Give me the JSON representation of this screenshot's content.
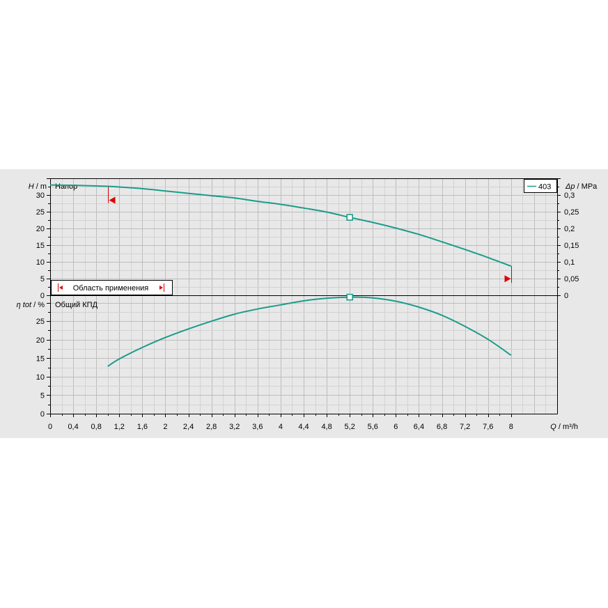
{
  "chart_data": [
    {
      "type": "line",
      "panel": "head",
      "title": "Напор",
      "ylabel_symbol": "H",
      "ylabel_unit": "m",
      "y2label_symbol": "Δp",
      "y2label_unit": "MPa",
      "xlim": [
        0,
        8.8
      ],
      "ylim": [
        0,
        35
      ],
      "y2lim": [
        0,
        0.35
      ],
      "yticks": [
        "0",
        "5",
        "10",
        "15",
        "20",
        "25",
        "30"
      ],
      "y2ticks": [
        "0",
        "0,05",
        "0,1",
        "0,15",
        "0,2",
        "0,25",
        "0,3"
      ],
      "legend": {
        "label": "403",
        "placement": "top-right"
      },
      "series": [
        {
          "name": "403",
          "x": [
            0,
            0.4,
            0.8,
            1.0,
            1.2,
            1.6,
            2.0,
            2.4,
            2.8,
            3.2,
            3.6,
            4.0,
            4.4,
            4.8,
            5.2,
            5.6,
            6.0,
            6.4,
            6.8,
            7.2,
            7.6,
            8.0
          ],
          "y": [
            33.0,
            32.9,
            32.7,
            32.6,
            32.4,
            31.9,
            31.2,
            30.5,
            29.8,
            29.1,
            28.1,
            27.2,
            26.1,
            24.9,
            23.3,
            21.8,
            20.1,
            18.2,
            16.0,
            13.7,
            11.3,
            8.7
          ]
        }
      ],
      "markers": [
        {
          "x": 5.2,
          "y": 23.3
        }
      ],
      "operating_range": {
        "label": "Область применения",
        "qmin": 1.0,
        "qmax": 8.0
      }
    },
    {
      "type": "line",
      "panel": "efficiency",
      "title": "Общий КПД",
      "ylabel_symbol": "η tot",
      "ylabel_unit": "%",
      "xlabel_symbol": "Q",
      "xlabel_unit": "m³/h",
      "xlim": [
        0,
        8.8
      ],
      "ylim": [
        0,
        32
      ],
      "yticks": [
        "0",
        "5",
        "10",
        "15",
        "20",
        "25"
      ],
      "xticks": [
        "0",
        "0,4",
        "0,8",
        "1,2",
        "1,6",
        "2",
        "2,4",
        "2,8",
        "3,2",
        "3,6",
        "4",
        "4,4",
        "4,8",
        "5,2",
        "5,6",
        "6",
        "6,4",
        "6,8",
        "7,2",
        "7,6",
        "8"
      ],
      "series": [
        {
          "name": "403",
          "x": [
            1.0,
            1.2,
            1.6,
            2.0,
            2.4,
            2.8,
            3.2,
            3.6,
            4.0,
            4.4,
            4.8,
            5.2,
            5.6,
            6.0,
            6.4,
            6.8,
            7.2,
            7.6,
            8.0
          ],
          "y": [
            12.8,
            14.8,
            17.9,
            20.6,
            22.9,
            25.0,
            26.9,
            28.3,
            29.4,
            30.5,
            31.2,
            31.5,
            31.3,
            30.4,
            28.8,
            26.6,
            23.6,
            20.1,
            15.8
          ]
        }
      ],
      "markers": [
        {
          "x": 5.2,
          "y": 31.5
        }
      ]
    }
  ]
}
